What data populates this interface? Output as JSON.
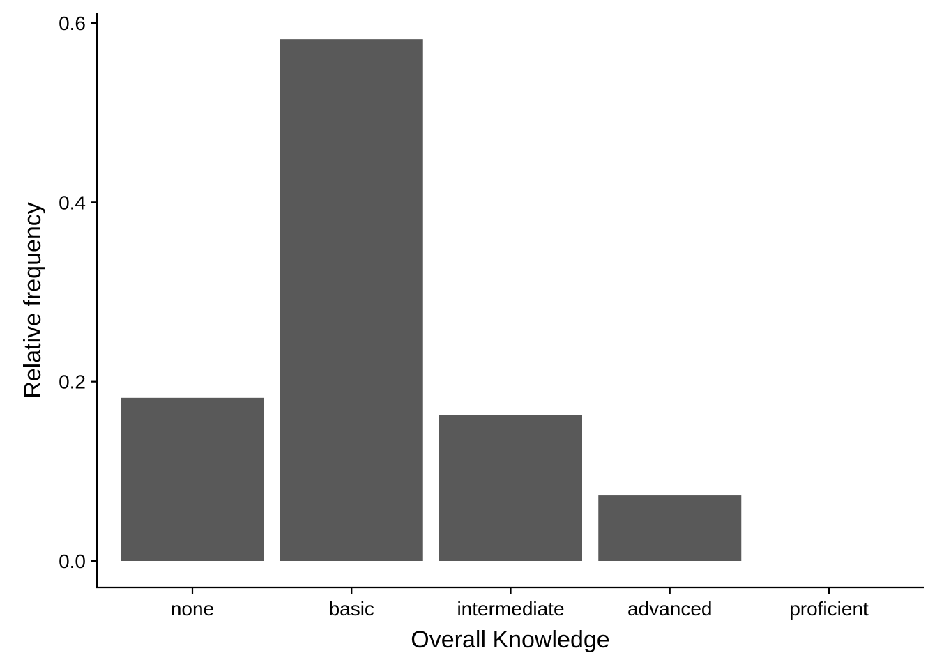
{
  "chart_data": {
    "type": "bar",
    "categories": [
      "none",
      "basic",
      "intermediate",
      "advanced",
      "proficient"
    ],
    "values": [
      0.182,
      0.582,
      0.163,
      0.073,
      0.0
    ],
    "xlabel": "Overall Knowledge",
    "ylabel": "Relative frequency",
    "ylim": [
      -0.03,
      0.612
    ],
    "yticks": [
      0.0,
      0.2,
      0.4,
      0.6
    ],
    "ytick_labels": [
      "0.0",
      "0.2",
      "0.4",
      "0.6"
    ],
    "grid": false,
    "legend": "none",
    "bar_color": "#595959",
    "axis_color": "#000000"
  }
}
